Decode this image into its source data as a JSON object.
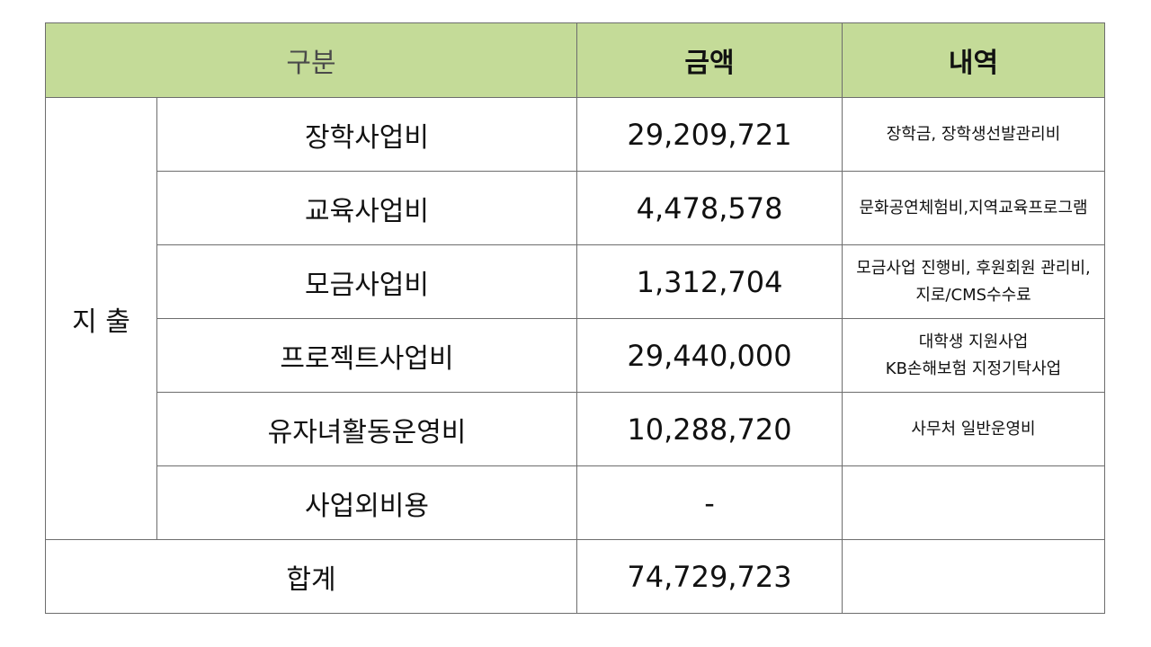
{
  "header": {
    "category": "구분",
    "amount": "금액",
    "detail": "내역"
  },
  "group_label": "지 출",
  "rows": [
    {
      "item": "장학사업비",
      "amount": "29,209,721",
      "detail": "장학금, 장학생선발관리비"
    },
    {
      "item": "교육사업비",
      "amount": "4,478,578",
      "detail": "문화공연체험비,지역교육프로그램"
    },
    {
      "item": "모금사업비",
      "amount": "1,312,704",
      "detail": "모금사업 진행비, 후원회원 관리비, 지로/CMS수수료"
    },
    {
      "item": "프로젝트사업비",
      "amount": "29,440,000",
      "detail": "대학생 지원사업\nKB손해보험 지정기탁사업"
    },
    {
      "item": "유자녀활동운영비",
      "amount": "10,288,720",
      "detail": "사무처 일반운영비"
    },
    {
      "item": "사업외비용",
      "amount": "-",
      "detail": ""
    }
  ],
  "total": {
    "label": "합계",
    "amount": "74,729,723",
    "detail": ""
  }
}
